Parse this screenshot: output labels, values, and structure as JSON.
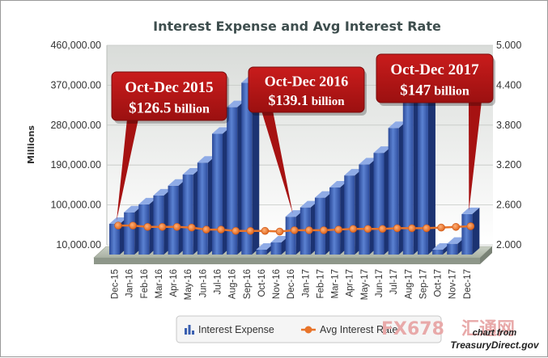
{
  "chart_data": {
    "type": "bar",
    "title": "Interest Expense and Avg Interest Rate",
    "ylabel": "Millions",
    "ylim": [
      10000,
      460000
    ],
    "y_ticks": [
      "460,000.00",
      "370,000.00",
      "280,000.00",
      "190,000.00",
      "100,000.00",
      "10,000.00"
    ],
    "y_tick_values": [
      460000,
      370000,
      280000,
      190000,
      100000,
      10000
    ],
    "y2lim": [
      2.0,
      5.0
    ],
    "y2_ticks": [
      "5.000",
      "4.400",
      "3.800",
      "3.200",
      "2.600",
      "2.000"
    ],
    "y2_tick_values": [
      5.0,
      4.4,
      3.8,
      3.2,
      2.6,
      2.0
    ],
    "categories": [
      "Dec-15",
      "Jan-16",
      "Feb-16",
      "Mar-16",
      "Apr-16",
      "May-16",
      "Jun-16",
      "Jul-16",
      "Aug-16",
      "Sep-16",
      "Oct-16",
      "Nov-16",
      "Dec-16",
      "Jan-17",
      "Feb-17",
      "Mar-17",
      "Apr-17",
      "May-17",
      "Jun-17",
      "Jul-17",
      "Aug-17",
      "Sep-17",
      "Oct-17",
      "Nov-17",
      "Dec-17"
    ],
    "series": [
      {
        "name": "Interest Expense",
        "type": "bar",
        "axis": "left",
        "color": "#3a5fb0",
        "values": [
          72000,
          98000,
          116000,
          136000,
          158000,
          183000,
          210000,
          275000,
          335000,
          390000,
          0,
          30000,
          88000,
          109000,
          131000,
          154000,
          181000,
          206000,
          232000,
          288000,
          348000,
          400000,
          0,
          27000,
          94000
        ]
      },
      {
        "name": "Avg Interest Rate",
        "type": "line",
        "axis": "right",
        "color": "#e8742a",
        "values": [
          2.29,
          2.29,
          2.27,
          2.27,
          2.27,
          2.26,
          2.23,
          2.23,
          2.21,
          2.21,
          2.21,
          2.2,
          2.22,
          2.22,
          2.22,
          2.23,
          2.24,
          2.24,
          2.24,
          2.25,
          2.25,
          2.25,
          2.26,
          2.27,
          2.28
        ]
      }
    ],
    "annotations": [
      {
        "line1": "Oct-Dec 2015",
        "line2_value": "$126.5",
        "line2_unit": " billion",
        "category": "Dec-15"
      },
      {
        "line1": "Oct-Dec 2016",
        "line2_value": "$139.1",
        "line2_unit": " billion",
        "category": "Dec-16"
      },
      {
        "line1": "Oct-Dec 2017",
        "line2_value": "$147",
        "line2_unit": " billion",
        "category": "Dec-17"
      }
    ],
    "legend": {
      "placement": "bottom",
      "items": [
        "Interest Expense",
        "Avg Interest Rate"
      ]
    },
    "grid": true
  },
  "credit": {
    "line1": "chart from",
    "line2": "TreasuryDirect.gov"
  },
  "watermark": {
    "text": "FX678",
    "cn": "汇通网"
  }
}
